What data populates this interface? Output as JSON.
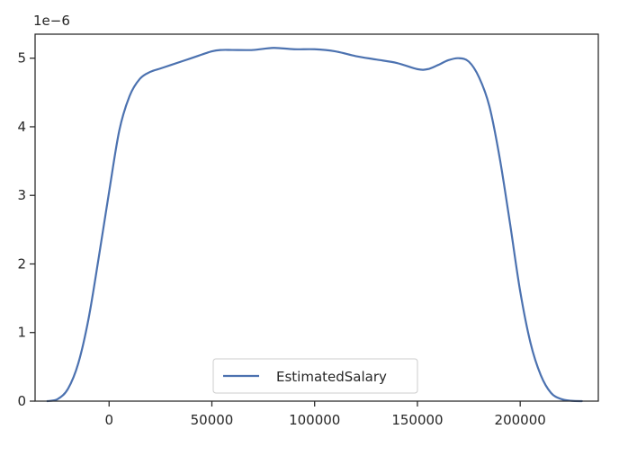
{
  "chart_data": {
    "type": "line",
    "title": "",
    "xlabel": "",
    "ylabel": "",
    "y_offset_label": "1e−6",
    "y_scale_multiplier": 1e-06,
    "xlim": [
      -36000,
      238000
    ],
    "ylim": [
      0,
      5.35
    ],
    "x_ticks": [
      0,
      50000,
      100000,
      150000,
      200000
    ],
    "x_tick_labels": [
      "0",
      "50000",
      "100000",
      "150000",
      "200000"
    ],
    "y_ticks": [
      0,
      1,
      2,
      3,
      4,
      5
    ],
    "y_tick_labels": [
      "0",
      "1",
      "2",
      "3",
      "4",
      "5"
    ],
    "grid": false,
    "legend_position": "lower center",
    "series": [
      {
        "name": "EstimatedSalary",
        "color": "#4c72b0",
        "x": [
          -30000,
          -25000,
          -20000,
          -15000,
          -10000,
          -5000,
          0,
          5000,
          10000,
          15000,
          20000,
          25000,
          30000,
          40000,
          50000,
          55000,
          60000,
          70000,
          80000,
          90000,
          100000,
          110000,
          120000,
          130000,
          140000,
          150000,
          155000,
          160000,
          165000,
          170000,
          175000,
          180000,
          185000,
          190000,
          195000,
          200000,
          205000,
          210000,
          215000,
          220000,
          225000,
          230000
        ],
        "y": [
          0.0,
          0.03,
          0.18,
          0.55,
          1.2,
          2.1,
          3.05,
          3.95,
          4.45,
          4.7,
          4.8,
          4.85,
          4.9,
          5.0,
          5.1,
          5.12,
          5.12,
          5.12,
          5.15,
          5.13,
          5.13,
          5.1,
          5.03,
          4.98,
          4.93,
          4.84,
          4.84,
          4.9,
          4.97,
          5.0,
          4.95,
          4.72,
          4.3,
          3.55,
          2.6,
          1.6,
          0.85,
          0.38,
          0.12,
          0.03,
          0.005,
          0.0
        ]
      }
    ]
  }
}
